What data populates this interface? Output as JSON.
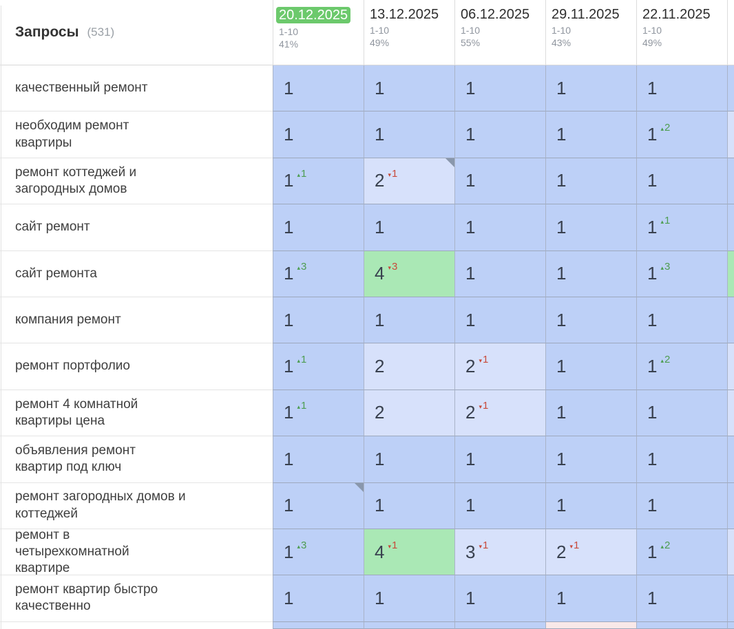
{
  "header": {
    "title": "Запросы",
    "count": "(531)",
    "columns": [
      {
        "date": "20.12.2025",
        "range": "1-10",
        "percent": "41%",
        "highlighted": true
      },
      {
        "date": "13.12.2025",
        "range": "1-10",
        "percent": "49%",
        "highlighted": false
      },
      {
        "date": "06.12.2025",
        "range": "1-10",
        "percent": "55%",
        "highlighted": false
      },
      {
        "date": "29.11.2025",
        "range": "1-10",
        "percent": "43%",
        "highlighted": false
      },
      {
        "date": "22.11.2025",
        "range": "1-10",
        "percent": "49%",
        "highlighted": false
      }
    ]
  },
  "colors": {
    "badge_green": "#6cc96c",
    "cell_blue": "#bdd0f7",
    "cell_light_blue": "#d7e1fb",
    "cell_green": "#aae8b5",
    "cell_pink": "#f9e8e8",
    "delta_up": "#4d9d51",
    "delta_down": "#c84a3a"
  },
  "rows": [
    {
      "keyword": "качественный ремонт",
      "cells": [
        {
          "v": "1"
        },
        {
          "v": "1"
        },
        {
          "v": "1"
        },
        {
          "v": "1"
        },
        {
          "v": "1"
        }
      ],
      "sliver": "blue"
    },
    {
      "keyword": "необходим ремонт\nквартиры",
      "cells": [
        {
          "v": "1"
        },
        {
          "v": "1"
        },
        {
          "v": "1"
        },
        {
          "v": "1"
        },
        {
          "v": "1",
          "delta": {
            "dir": "up",
            "n": "2"
          }
        }
      ],
      "sliver": "light"
    },
    {
      "keyword": "ремонт коттеджей и\nзагородных домов",
      "cells": [
        {
          "v": "1",
          "delta": {
            "dir": "up",
            "n": "1"
          }
        },
        {
          "v": "2",
          "tone": "light",
          "delta": {
            "dir": "down",
            "n": "1"
          },
          "note": true
        },
        {
          "v": "1"
        },
        {
          "v": "1"
        },
        {
          "v": "1"
        }
      ],
      "sliver": "blue"
    },
    {
      "keyword": "сайт ремонт",
      "cells": [
        {
          "v": "1"
        },
        {
          "v": "1"
        },
        {
          "v": "1"
        },
        {
          "v": "1"
        },
        {
          "v": "1",
          "delta": {
            "dir": "up",
            "n": "1"
          }
        }
      ],
      "sliver": "blue"
    },
    {
      "keyword": "сайт ремонта",
      "cells": [
        {
          "v": "1",
          "delta": {
            "dir": "up",
            "n": "3"
          }
        },
        {
          "v": "4",
          "tone": "green",
          "delta": {
            "dir": "down",
            "n": "3"
          }
        },
        {
          "v": "1"
        },
        {
          "v": "1"
        },
        {
          "v": "1",
          "delta": {
            "dir": "up",
            "n": "3"
          }
        }
      ],
      "sliver": "green"
    },
    {
      "keyword": "компания ремонт",
      "cells": [
        {
          "v": "1"
        },
        {
          "v": "1"
        },
        {
          "v": "1"
        },
        {
          "v": "1"
        },
        {
          "v": "1"
        }
      ],
      "sliver": "blue"
    },
    {
      "keyword": "ремонт портфолио",
      "cells": [
        {
          "v": "1",
          "delta": {
            "dir": "up",
            "n": "1"
          }
        },
        {
          "v": "2",
          "tone": "light"
        },
        {
          "v": "2",
          "tone": "light",
          "delta": {
            "dir": "down",
            "n": "1"
          }
        },
        {
          "v": "1"
        },
        {
          "v": "1",
          "delta": {
            "dir": "up",
            "n": "2"
          }
        }
      ],
      "sliver": "light"
    },
    {
      "keyword": "ремонт 4 комнатной\nквартиры цена",
      "cells": [
        {
          "v": "1",
          "delta": {
            "dir": "up",
            "n": "1"
          }
        },
        {
          "v": "2",
          "tone": "light"
        },
        {
          "v": "2",
          "tone": "light",
          "delta": {
            "dir": "down",
            "n": "1"
          }
        },
        {
          "v": "1"
        },
        {
          "v": "1"
        }
      ],
      "sliver": "light"
    },
    {
      "keyword": "объявления ремонт\nквартир под ключ",
      "cells": [
        {
          "v": "1"
        },
        {
          "v": "1"
        },
        {
          "v": "1"
        },
        {
          "v": "1"
        },
        {
          "v": "1"
        }
      ],
      "sliver": "blue"
    },
    {
      "keyword": "ремонт загородных домов и\nкоттеджей",
      "cells": [
        {
          "v": "1",
          "note": true
        },
        {
          "v": "1"
        },
        {
          "v": "1"
        },
        {
          "v": "1"
        },
        {
          "v": "1"
        }
      ],
      "sliver": "blue"
    },
    {
      "keyword": "ремонт в\nчетырехкомнатной\nквартире",
      "cells": [
        {
          "v": "1",
          "delta": {
            "dir": "up",
            "n": "3"
          }
        },
        {
          "v": "4",
          "tone": "green",
          "delta": {
            "dir": "down",
            "n": "1"
          }
        },
        {
          "v": "3",
          "tone": "light",
          "delta": {
            "dir": "down",
            "n": "1"
          }
        },
        {
          "v": "2",
          "tone": "light",
          "delta": {
            "dir": "down",
            "n": "1"
          }
        },
        {
          "v": "1",
          "delta": {
            "dir": "up",
            "n": "2"
          }
        }
      ],
      "sliver": "light"
    },
    {
      "keyword": "ремонт квартир быстро\nкачественно",
      "cells": [
        {
          "v": "1"
        },
        {
          "v": "1"
        },
        {
          "v": "1"
        },
        {
          "v": "1"
        },
        {
          "v": "1"
        }
      ],
      "sliver": "blue"
    }
  ],
  "partial_row": {
    "cells": [
      "blue",
      "blue",
      "blue",
      "pink",
      "blue"
    ],
    "sliver": "blue"
  },
  "icons": {
    "up": "▴",
    "down": "▾"
  }
}
